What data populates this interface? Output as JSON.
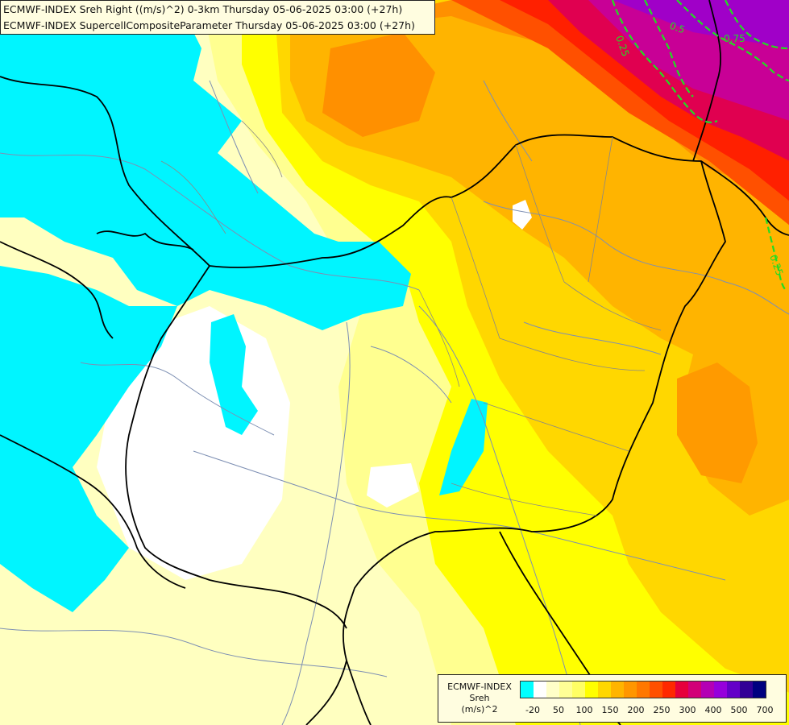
{
  "title": {
    "line1": "ECMWF-INDEX Sreh Right ((m/s)^2) 0-3km Thursday 05-06-2025 03:00 (+27h)",
    "line2": "ECMWF-INDEX SupercellCompositeParameter Thursday 05-06-2025 03:00 (+27h)"
  },
  "legend": {
    "line1": "ECMWF-INDEX",
    "line2": "Sreh",
    "line3": "(m/s)^2",
    "colors": [
      "#00ffff",
      "#ffffff",
      "#ffffc8",
      "#ffff96",
      "#ffff64",
      "#ffff00",
      "#ffd700",
      "#ffb400",
      "#ff9600",
      "#ff7800",
      "#ff5000",
      "#ff2800",
      "#e6003c",
      "#d20078",
      "#b400b4",
      "#9600dc",
      "#6400c8",
      "#320096",
      "#000080"
    ],
    "ticks": [
      "-20",
      "50",
      "100",
      "150",
      "200",
      "250",
      "300",
      "400",
      "500",
      "700"
    ]
  },
  "contours": {
    "label_025_a": "0.25",
    "label_05": "0.5",
    "label_075": "0.75",
    "label_025_b": "0.25"
  }
}
